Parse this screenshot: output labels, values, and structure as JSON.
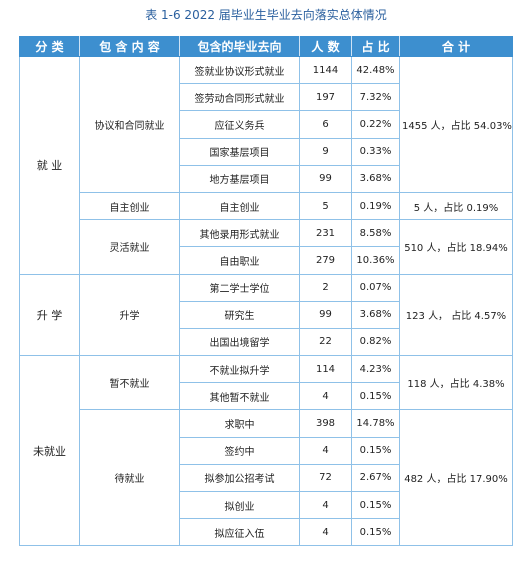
{
  "caption": "表 1-6   2022 届毕业生毕业去向落实总体情况",
  "headers": [
    "分 类",
    "包 含 内 容",
    "包含的毕业去向",
    "人 数",
    "占 比",
    "合 计"
  ],
  "categories": {
    "employed": "就 业",
    "further": "升 学",
    "unemployed": "未就业"
  },
  "groups": {
    "contract": {
      "name": "协议和合同就业",
      "total": "1455 人，占比 54.03%"
    },
    "self": {
      "name": "自主创业",
      "total": "5 人，占比 0.19%"
    },
    "flex": {
      "name": "灵活就业",
      "total": "510 人，占比 18.94%"
    },
    "study": {
      "name": "升学",
      "total": "123 人， 占比 4.57%"
    },
    "temp": {
      "name": "暂不就业",
      "total": "118 人，占比 4.38%"
    },
    "wait": {
      "name": "待就业",
      "total": "482 人，占比 17.90%"
    }
  },
  "rows": [
    {
      "dest": "签就业协议形式就业",
      "count": "1144",
      "pct": "42.48%"
    },
    {
      "dest": "签劳动合同形式就业",
      "count": "197",
      "pct": "7.32%"
    },
    {
      "dest": "应征义务兵",
      "count": "6",
      "pct": "0.22%"
    },
    {
      "dest": "国家基层项目",
      "count": "9",
      "pct": "0.33%"
    },
    {
      "dest": "地方基层项目",
      "count": "99",
      "pct": "3.68%"
    },
    {
      "dest": "自主创业",
      "count": "5",
      "pct": "0.19%"
    },
    {
      "dest": "其他录用形式就业",
      "count": "231",
      "pct": "8.58%"
    },
    {
      "dest": "自由职业",
      "count": "279",
      "pct": "10.36%"
    },
    {
      "dest": "第二学士学位",
      "count": "2",
      "pct": "0.07%"
    },
    {
      "dest": "研究生",
      "count": "99",
      "pct": "3.68%"
    },
    {
      "dest": "出国出境留学",
      "count": "22",
      "pct": "0.82%"
    },
    {
      "dest": "不就业拟升学",
      "count": "114",
      "pct": "4.23%"
    },
    {
      "dest": "其他暂不就业",
      "count": "4",
      "pct": "0.15%"
    },
    {
      "dest": "求职中",
      "count": "398",
      "pct": "14.78%"
    },
    {
      "dest": "签约中",
      "count": "4",
      "pct": "0.15%"
    },
    {
      "dest": "拟参加公招考试",
      "count": "72",
      "pct": "2.67%"
    },
    {
      "dest": "拟创业",
      "count": "4",
      "pct": "0.15%"
    },
    {
      "dest": "拟应征入伍",
      "count": "4",
      "pct": "0.15%"
    }
  ]
}
